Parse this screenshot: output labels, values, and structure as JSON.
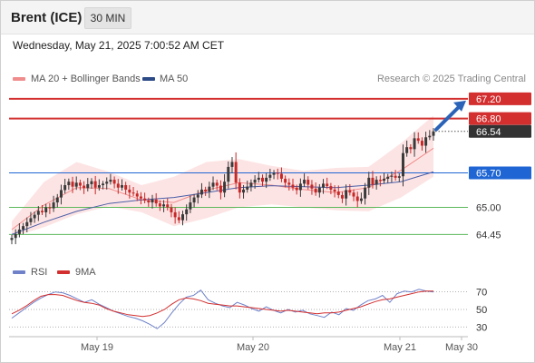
{
  "header": {
    "instrument": "Brent (ICE)",
    "interval_label": "30 MIN"
  },
  "datetime": "Wednesday, May 21, 2025 7:00:52 AM CET",
  "legend": {
    "ma20_label": "MA 20 + Bollinger Bands",
    "ma50_label": "MA 50",
    "credit": "Research © 2025 Trading Central"
  },
  "rsi_legend": {
    "rsi_label": "RSI",
    "ma_label": "9MA"
  },
  "colors": {
    "up": "#3a3a3a",
    "down": "#c62828",
    "bollinger_fill": "#fde4e4",
    "ma20": "#f08c8c",
    "ma50": "#4a5fa8",
    "resistance": "#d32f2f",
    "pivot": "#1f66d4",
    "support": "#5cb85c",
    "rsi": "#6f82c9",
    "rsi_ma": "#d32f2f",
    "current": "#333333"
  },
  "chart_data": [
    {
      "type": "candlestick",
      "title": "Brent (ICE)",
      "interval": "30 MIN",
      "x_ticks": [
        "May 19",
        "May 20",
        "May 21",
        "May 30"
      ],
      "ylim": [
        64.2,
        67.4
      ],
      "price_levels": [
        {
          "label": "67.20",
          "value": 67.2,
          "kind": "resistance"
        },
        {
          "label": "66.80",
          "value": 66.8,
          "kind": "resistance"
        },
        {
          "label": "66.54",
          "value": 66.54,
          "kind": "current"
        },
        {
          "label": "65.70",
          "value": 65.7,
          "kind": "pivot"
        },
        {
          "label": "65.00",
          "value": 65.0,
          "kind": "support"
        },
        {
          "label": "64.45",
          "value": 64.45,
          "kind": "support"
        }
      ],
      "close": [
        64.38,
        64.46,
        64.55,
        64.62,
        64.7,
        64.78,
        64.85,
        64.93,
        64.9,
        65.0,
        64.98,
        65.1,
        65.2,
        65.35,
        65.45,
        65.52,
        65.42,
        65.5,
        65.44,
        65.39,
        65.47,
        65.53,
        65.4,
        65.45,
        65.48,
        65.52,
        65.56,
        65.48,
        65.4,
        65.45,
        65.36,
        65.3,
        65.28,
        65.22,
        65.18,
        65.14,
        65.1,
        65.16,
        65.08,
        65.02,
        65.06,
        65.0,
        64.9,
        64.8,
        64.74,
        64.86,
        64.96,
        65.1,
        65.2,
        65.26,
        65.36,
        65.32,
        65.42,
        65.5,
        65.44,
        65.3,
        65.52,
        65.82,
        65.92,
        65.5,
        65.3,
        65.36,
        65.42,
        65.5,
        65.56,
        65.6,
        65.52,
        65.6,
        65.66,
        65.7,
        65.68,
        65.58,
        65.5,
        65.46,
        65.4,
        65.35,
        65.48,
        65.56,
        65.46,
        65.38,
        65.3,
        65.4,
        65.48,
        65.43,
        65.36,
        65.32,
        65.25,
        65.18,
        65.35,
        65.3,
        65.22,
        65.13,
        65.18,
        65.4,
        65.6,
        65.46,
        65.56,
        65.54,
        65.58,
        65.62,
        65.64,
        65.6,
        65.63,
        66.1,
        66.22,
        66.18,
        66.4,
        66.35,
        66.25,
        66.42,
        66.45,
        66.54
      ],
      "ma20_band": {
        "upper": [
          64.72,
          65.52,
          65.92,
          65.72,
          65.45,
          65.62,
          65.92,
          65.98,
          65.84,
          65.74,
          65.8,
          65.82,
          66.3,
          66.86
        ],
        "lower": [
          64.4,
          64.6,
          64.86,
          65.02,
          64.9,
          64.62,
          64.78,
          65.0,
          65.06,
          65.0,
          64.94,
          64.92,
          65.2,
          65.62
        ]
      },
      "ma20": [
        64.55,
        65.05,
        65.4,
        65.38,
        65.15,
        65.1,
        65.35,
        65.5,
        65.45,
        65.36,
        65.3,
        65.4,
        65.75,
        66.2
      ],
      "ma50": [
        64.45,
        64.7,
        64.92,
        65.08,
        65.15,
        65.2,
        65.3,
        65.4,
        65.44,
        65.42,
        65.4,
        65.45,
        65.52,
        65.72
      ]
    },
    {
      "type": "line",
      "title": "",
      "series": [
        {
          "name": "RSI",
          "values": [
            40,
            46,
            52,
            58,
            63,
            67,
            70,
            69,
            66,
            62,
            58,
            61,
            56,
            52,
            48,
            45,
            42,
            40,
            37,
            33,
            28,
            35,
            46,
            56,
            64,
            66,
            72,
            61,
            57,
            54,
            52,
            58,
            55,
            51,
            48,
            53,
            49,
            46,
            50,
            47,
            49,
            45,
            43,
            41,
            47,
            44,
            51,
            49,
            55,
            60,
            62,
            66,
            58,
            68,
            71,
            70,
            73,
            71,
            70
          ]
        },
        {
          "name": "9MA",
          "values": [
            45,
            49,
            54,
            60,
            65,
            67,
            67,
            66,
            63,
            60,
            58,
            57,
            55,
            51,
            48,
            46,
            44,
            43,
            42,
            43,
            46,
            50,
            56,
            61,
            63,
            62,
            60,
            57,
            56,
            55,
            54,
            54,
            53,
            52,
            51,
            50,
            49,
            48,
            49,
            48,
            47,
            46,
            45,
            46,
            46,
            47,
            49,
            51,
            53,
            56,
            59,
            61,
            62,
            64,
            66,
            68,
            70,
            71,
            71
          ]
        }
      ],
      "yticks": [
        "70",
        "50",
        "30"
      ],
      "ylim": [
        22,
        80
      ]
    }
  ]
}
